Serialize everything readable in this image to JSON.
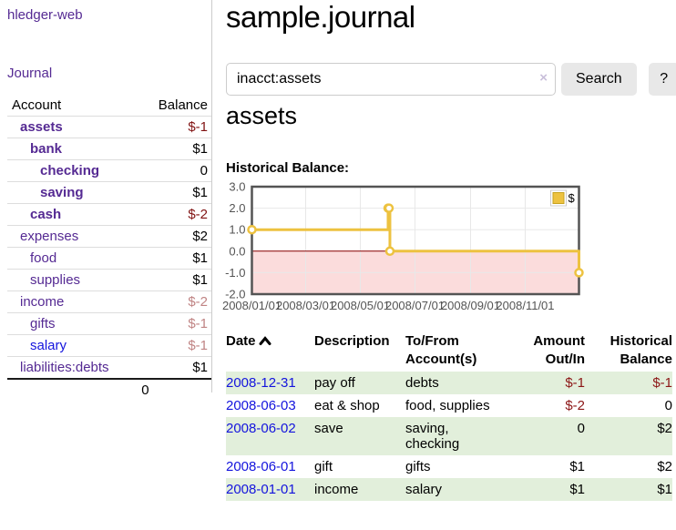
{
  "app": {
    "brand": "hledger-web",
    "nav_journal": "Journal"
  },
  "sidebar": {
    "columns": {
      "account": "Account",
      "balance": "Balance"
    },
    "accounts": [
      {
        "name": "assets",
        "depth": 0,
        "bold": true,
        "balance": "$-1",
        "neg": "strong"
      },
      {
        "name": "bank",
        "depth": 1,
        "bold": true,
        "balance": "$1"
      },
      {
        "name": "checking",
        "depth": 2,
        "bold": true,
        "balance": "0"
      },
      {
        "name": "saving",
        "depth": 2,
        "bold": true,
        "balance": "$1"
      },
      {
        "name": "cash",
        "depth": 1,
        "bold": true,
        "balance": "$-2",
        "neg": "strong"
      },
      {
        "name": "expenses",
        "depth": 0,
        "bold": false,
        "balance": "$2"
      },
      {
        "name": "food",
        "depth": 1,
        "bold": false,
        "balance": "$1"
      },
      {
        "name": "supplies",
        "depth": 1,
        "bold": false,
        "balance": "$1"
      },
      {
        "name": "income",
        "depth": 0,
        "bold": false,
        "balance": "$-2",
        "neg": "dim"
      },
      {
        "name": "gifts",
        "depth": 1,
        "bold": false,
        "balance": "$-1",
        "neg": "dim"
      },
      {
        "name": "salary",
        "depth": 1,
        "bold": false,
        "balance": "$-1",
        "neg": "dim",
        "link_style": "unvisited"
      },
      {
        "name": "liabilities:debts",
        "depth": 0,
        "bold": false,
        "balance": "$1"
      }
    ],
    "total": "0"
  },
  "header": {
    "title": "sample.journal"
  },
  "search": {
    "value": "inacct:assets",
    "clear_icon": "×",
    "button": "Search",
    "help_button": "?"
  },
  "account_page": {
    "title": "assets",
    "chart_label": "Historical Balance:"
  },
  "chart_data": {
    "type": "line",
    "title": "Historical Balance",
    "step": true,
    "series": [
      {
        "name": "$",
        "color": "#EDC240",
        "points": [
          [
            "2008-01-01",
            1
          ],
          [
            "2008-06-01",
            2
          ],
          [
            "2008-06-02",
            2
          ],
          [
            "2008-06-03",
            0
          ],
          [
            "2008-12-31",
            -1
          ]
        ]
      }
    ],
    "xlim": [
      "2008-01-01",
      "2008-12-31"
    ],
    "ylim": [
      -2,
      3
    ],
    "x_ticks": [
      "2008/01/01",
      "2008/03/01",
      "2008/05/01",
      "2008/07/01",
      "2008/09/01",
      "2008/11/01"
    ],
    "y_ticks": [
      "3.0",
      "2.0",
      "1.0",
      "0.0",
      "-1.0",
      "-2.0"
    ],
    "legend": {
      "label": "$",
      "position": "top-right"
    },
    "grid": true,
    "negative_region": {
      "fill": "#fbdcdc",
      "zero_line": "#8b0000"
    },
    "grid_color": "#e8e8e8",
    "border_color": "#545454"
  },
  "register": {
    "columns": [
      "Date",
      "Description",
      "To/From Account(s)",
      "Amount Out/In",
      "Historical Balance"
    ],
    "sort": "ascending",
    "rows": [
      {
        "date": "2008-12-31",
        "description": "pay off",
        "accounts": "debts",
        "amount": "$-1",
        "amount_neg": true,
        "balance": "$-1",
        "balance_neg": true
      },
      {
        "date": "2008-06-03",
        "description": "eat & shop",
        "accounts": "food, supplies",
        "amount": "$-2",
        "amount_neg": true,
        "balance": "0"
      },
      {
        "date": "2008-06-02",
        "description": "save",
        "accounts": "saving, checking",
        "amount": "0",
        "balance": "$2"
      },
      {
        "date": "2008-06-01",
        "description": "gift",
        "accounts": "gifts",
        "amount": "$1",
        "balance": "$2"
      },
      {
        "date": "2008-01-01",
        "description": "income",
        "accounts": "salary",
        "amount": "$1",
        "balance": "$1"
      }
    ]
  },
  "colors": {
    "link_visited_purple": "#552a93",
    "link_blue": "#1414dd",
    "negative_strong": "#801212",
    "negative_dim": "#c08484",
    "row_highlight_green": "#e2efdb",
    "series_yellow": "#EDC240"
  }
}
